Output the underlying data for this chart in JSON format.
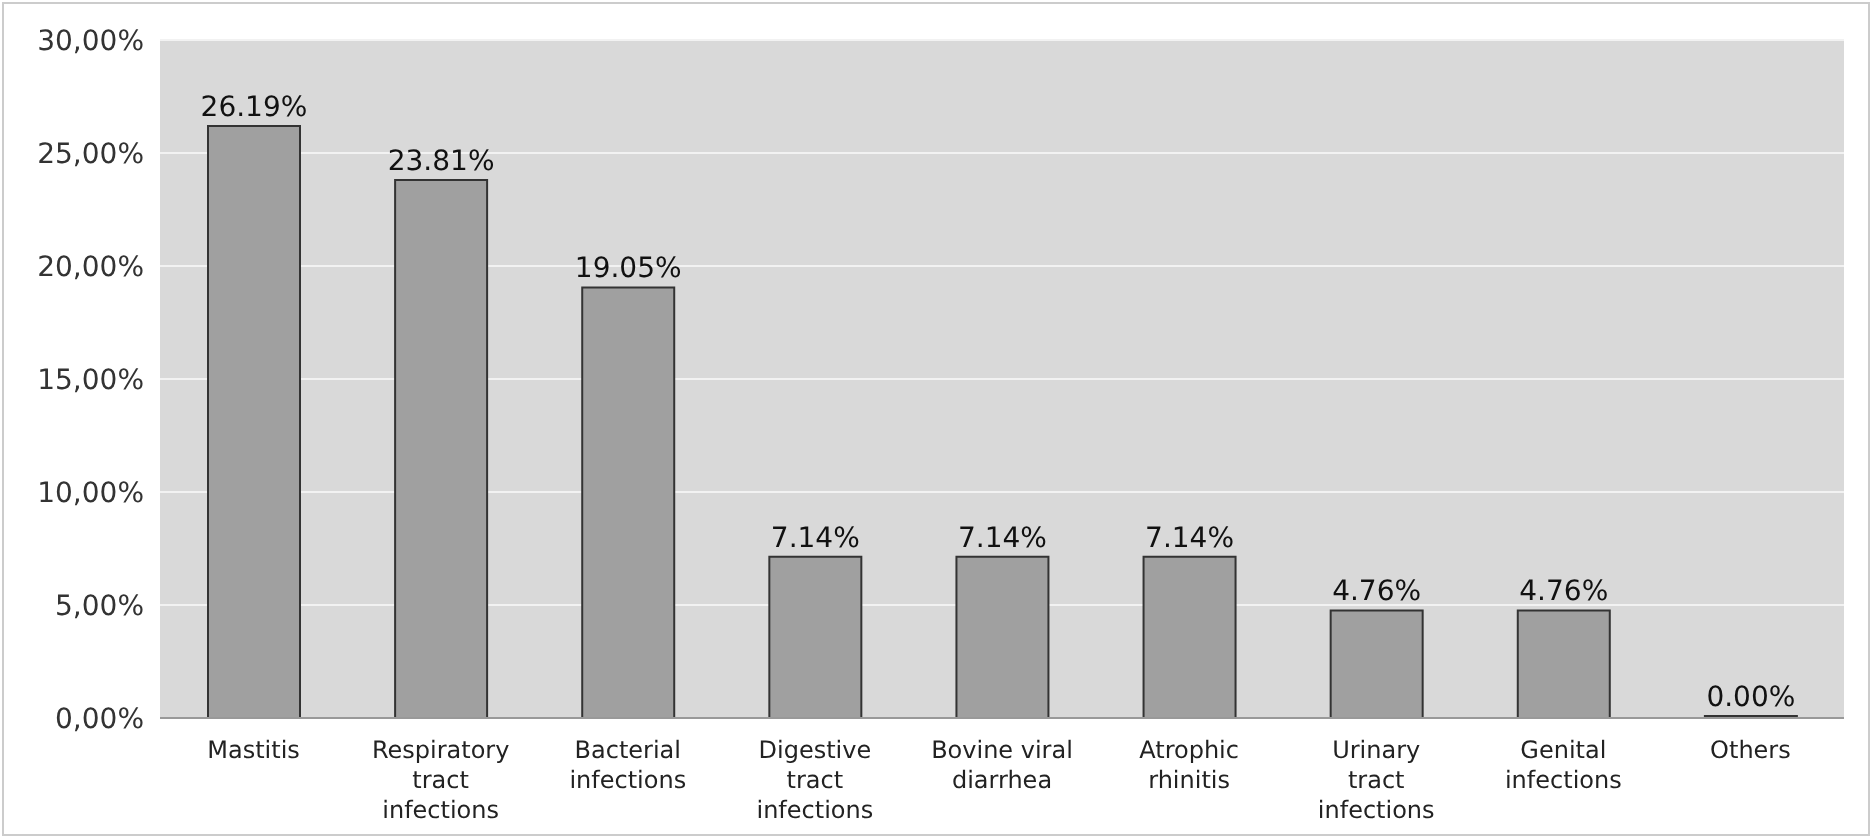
{
  "chart_data": {
    "type": "bar",
    "categories": [
      "Mastitis",
      "Respiratory tract infections",
      "Bacterial infections",
      "Digestive tract infections",
      "Bovine viral diarrhea",
      "Atrophic rhinitis",
      "Urinary tract infections",
      "Genital infections",
      "Others"
    ],
    "values": [
      26.19,
      23.81,
      19.05,
      7.14,
      7.14,
      7.14,
      4.76,
      4.76,
      0
    ],
    "value_labels": [
      "26.19%",
      "23.81%",
      "19.05%",
      "7.14%",
      "7.14%",
      "7.14%",
      "4.76%",
      "4.76%",
      "0.00%"
    ],
    "color": "#a0a0a0",
    "ylim": [
      0,
      30
    ],
    "yticks": [
      {
        "value": 0,
        "label": "0,00%"
      },
      {
        "value": 5,
        "label": "5,00%"
      },
      {
        "value": 10,
        "label": "10,00%"
      },
      {
        "value": 15,
        "label": "15,00%"
      },
      {
        "value": 20,
        "label": "20,00%"
      },
      {
        "value": 25,
        "label": "25,00%"
      },
      {
        "value": 30,
        "label": "30,00%"
      }
    ],
    "grid": "y",
    "legend": false
  }
}
